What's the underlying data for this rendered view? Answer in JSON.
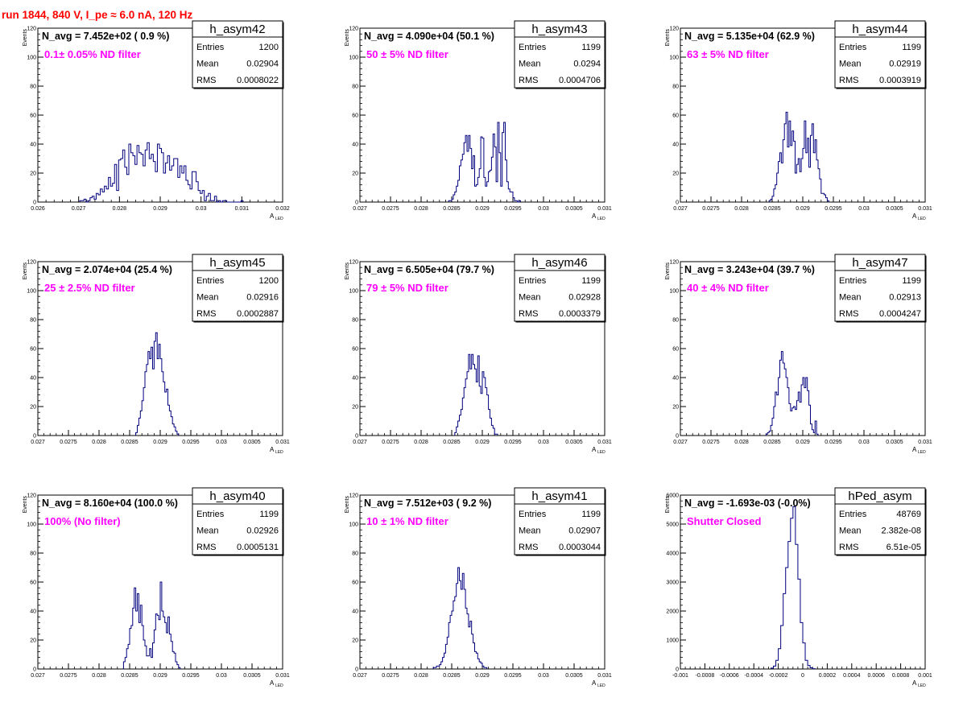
{
  "page_title": "run 1844,   840 V, I_pe ≈ 6.0 nA, 120 Hz",
  "ylabel": "Events",
  "xlabel": "A",
  "xlabel_sub": "LED",
  "stats_labels": {
    "entries": "Entries",
    "mean": "Mean",
    "rms": "RMS"
  },
  "colors": {
    "histogram": "#00007f",
    "title": "#ff0000",
    "filter_label": "#ff00ff",
    "grid": "#000000"
  },
  "chart_data": [
    {
      "type": "bar",
      "name": "h_asym42",
      "navg": "N_avg = 7.452e+02 ( 0.9 %)",
      "filter": "0.1± 0.05% ND filter",
      "stats": {
        "entries": "1200",
        "mean": "0.02904",
        "rms": "0.0008022"
      },
      "xlim": [
        0.026,
        0.032
      ],
      "ylim": [
        0,
        120
      ],
      "xticks": [
        "0.026",
        "0.027",
        "0.028",
        "0.029",
        "0.03",
        "0.031",
        "0.032"
      ],
      "yticks": [
        "0",
        "20",
        "40",
        "60",
        "80",
        "100",
        "120"
      ],
      "x_start": 0.02703,
      "bin_width": 5e-05,
      "values": [
        1,
        1,
        2,
        0,
        1,
        3,
        4,
        2,
        6,
        5,
        9,
        7,
        11,
        9,
        17,
        11,
        13,
        26,
        8,
        29,
        30,
        36,
        24,
        19,
        40,
        34,
        32,
        26,
        39,
        34,
        33,
        25,
        36,
        41,
        30,
        33,
        28,
        21,
        40,
        37,
        34,
        20,
        27,
        32,
        22,
        25,
        30,
        30,
        17,
        25,
        20,
        25,
        15,
        12,
        9,
        21,
        21,
        14,
        8,
        6,
        8,
        1,
        4,
        6,
        1,
        1,
        4,
        0,
        1,
        0,
        1,
        1,
        0,
        0,
        0,
        0,
        0,
        0,
        0,
        1
      ]
    },
    {
      "type": "bar",
      "name": "h_asym43",
      "navg": "N_avg = 4.090e+04 (50.1 %)",
      "filter": "50 ± 5% ND filter",
      "stats": {
        "entries": "1199",
        "mean": "0.0294",
        "rms": "0.0004706"
      },
      "xlim": [
        0.027,
        0.031
      ],
      "ylim": [
        0,
        120
      ],
      "xticks": [
        "0.027",
        "0.0275",
        "0.028",
        "0.0285",
        "0.029",
        "0.0295",
        "0.03",
        "0.0305",
        "0.031"
      ],
      "yticks": [
        "0",
        "20",
        "40",
        "60",
        "80",
        "100",
        "120"
      ],
      "x_start": 0.02845,
      "bin_width": 2.5e-05,
      "values": [
        1,
        1,
        2,
        5,
        7,
        11,
        15,
        25,
        29,
        33,
        41,
        46,
        35,
        46,
        37,
        23,
        32,
        11,
        12,
        17,
        23,
        45,
        44,
        17,
        11,
        14,
        21,
        22,
        31,
        47,
        38,
        14,
        55,
        34,
        11,
        48,
        55,
        29,
        14,
        9,
        7,
        7,
        3,
        1,
        1,
        0,
        1
      ]
    },
    {
      "type": "bar",
      "name": "h_asym44",
      "navg": "N_avg = 5.135e+04 (62.9 %)",
      "filter": "63 ± 5% ND filter",
      "stats": {
        "entries": "1199",
        "mean": "0.02919",
        "rms": "0.0003919"
      },
      "xlim": [
        0.027,
        0.031
      ],
      "ylim": [
        0,
        120
      ],
      "xticks": [
        "0.027",
        "0.0275",
        "0.028",
        "0.0285",
        "0.029",
        "0.0295",
        "0.03",
        "0.0305",
        "0.031"
      ],
      "yticks": [
        "0",
        "20",
        "40",
        "60",
        "80",
        "100",
        "120"
      ],
      "x_start": 0.02845,
      "bin_width": 2.5e-05,
      "values": [
        1,
        2,
        4,
        9,
        12,
        20,
        28,
        34,
        27,
        43,
        54,
        62,
        38,
        56,
        39,
        49,
        42,
        20,
        26,
        30,
        21,
        30,
        37,
        56,
        34,
        44,
        24,
        46,
        54,
        34,
        43,
        29,
        23,
        16,
        6,
        6,
        5,
        3,
        1
      ]
    },
    {
      "type": "bar",
      "name": "h_asym45",
      "navg": "N_avg = 2.074e+04 (25.4 %)",
      "filter": "25 ± 2.5% ND filter",
      "stats": {
        "entries": "1200",
        "mean": "0.02916",
        "rms": "0.0002887"
      },
      "xlim": [
        0.027,
        0.031
      ],
      "ylim": [
        0,
        120
      ],
      "xticks": [
        "0.027",
        "0.0275",
        "0.028",
        "0.0285",
        "0.029",
        "0.0295",
        "0.03",
        "0.0305",
        "0.031"
      ],
      "yticks": [
        "0",
        "20",
        "40",
        "60",
        "80",
        "100",
        "120"
      ],
      "x_start": 0.0286,
      "bin_width": 2.5e-05,
      "values": [
        2,
        7,
        12,
        17,
        24,
        33,
        44,
        49,
        58,
        53,
        61,
        46,
        65,
        71,
        53,
        63,
        53,
        44,
        37,
        30,
        32,
        21,
        17,
        13,
        8,
        6,
        3,
        1
      ]
    },
    {
      "type": "bar",
      "name": "h_asym46",
      "navg": "N_avg = 6.505e+04 (79.7 %)",
      "filter": "79 ± 5% ND filter",
      "stats": {
        "entries": "1199",
        "mean": "0.02928",
        "rms": "0.0003379"
      },
      "xlim": [
        0.027,
        0.031
      ],
      "ylim": [
        0,
        120
      ],
      "xticks": [
        "0.027",
        "0.0275",
        "0.028",
        "0.0285",
        "0.029",
        "0.0295",
        "0.03",
        "0.0305",
        "0.031"
      ],
      "yticks": [
        "0",
        "20",
        "40",
        "60",
        "80",
        "100",
        "120"
      ],
      "x_start": 0.02855,
      "bin_width": 2.5e-05,
      "values": [
        2,
        6,
        10,
        14,
        18,
        26,
        33,
        39,
        44,
        56,
        46,
        56,
        49,
        46,
        37,
        55,
        34,
        29,
        44,
        40,
        33,
        28,
        18,
        12,
        7,
        5,
        1,
        1
      ]
    },
    {
      "type": "bar",
      "name": "h_asym47",
      "navg": "N_avg = 3.243e+04 (39.7 %)",
      "filter": "40 ± 4% ND filter",
      "stats": {
        "entries": "1199",
        "mean": "0.02913",
        "rms": "0.0004247"
      },
      "xlim": [
        0.027,
        0.031
      ],
      "ylim": [
        0,
        120
      ],
      "xticks": [
        "0.027",
        "0.0275",
        "0.028",
        "0.0285",
        "0.029",
        "0.0295",
        "0.03",
        "0.0305",
        "0.031"
      ],
      "yticks": [
        "0",
        "20",
        "40",
        "60",
        "80",
        "100",
        "120"
      ],
      "x_start": 0.0284,
      "bin_width": 2.5e-05,
      "values": [
        1,
        2,
        3,
        7,
        12,
        20,
        30,
        28,
        40,
        52,
        58,
        50,
        46,
        40,
        33,
        22,
        17,
        19,
        20,
        18,
        24,
        30,
        23,
        35,
        40,
        33,
        40,
        31,
        21,
        8,
        4,
        2,
        10,
        1
      ]
    },
    {
      "type": "bar",
      "name": "h_asym40",
      "navg": "N_avg = 8.160e+04 (100.0 %)",
      "filter": "100% (No filter)",
      "stats": {
        "entries": "1199",
        "mean": "0.02926",
        "rms": "0.0005131"
      },
      "xlim": [
        0.027,
        0.031
      ],
      "ylim": [
        0,
        120
      ],
      "xticks": [
        "0.027",
        "0.0275",
        "0.028",
        "0.0285",
        "0.029",
        "0.0295",
        "0.03",
        "0.0305",
        "0.031"
      ],
      "yticks": [
        "0",
        "20",
        "40",
        "60",
        "80",
        "100",
        "120"
      ],
      "x_start": 0.0284,
      "bin_width": 2.5e-05,
      "values": [
        5,
        8,
        14,
        17,
        28,
        30,
        42,
        56,
        40,
        52,
        32,
        44,
        30,
        20,
        16,
        9,
        9,
        14,
        8,
        18,
        27,
        38,
        37,
        34,
        60,
        40,
        36,
        32,
        25,
        36,
        24,
        19,
        12,
        11,
        5,
        3,
        1
      ]
    },
    {
      "type": "bar",
      "name": "h_asym41",
      "navg": "N_avg = 7.512e+03 ( 9.2 %)",
      "filter": "10 ± 1% ND filter",
      "stats": {
        "entries": "1199",
        "mean": "0.02907",
        "rms": "0.0003044"
      },
      "xlim": [
        0.027,
        0.031
      ],
      "ylim": [
        0,
        120
      ],
      "xticks": [
        "0.027",
        "0.0275",
        "0.028",
        "0.0285",
        "0.029",
        "0.0295",
        "0.03",
        "0.0305",
        "0.031"
      ],
      "yticks": [
        "0",
        "20",
        "40",
        "60",
        "80",
        "100",
        "120"
      ],
      "x_start": 0.0282,
      "bin_width": 2.5e-05,
      "values": [
        1,
        1,
        2,
        2,
        3,
        5,
        8,
        11,
        17,
        22,
        32,
        37,
        40,
        47,
        50,
        59,
        70,
        61,
        55,
        66,
        55,
        42,
        38,
        29,
        33,
        24,
        18,
        12,
        11,
        7,
        5,
        4,
        2,
        1,
        1
      ]
    },
    {
      "type": "bar",
      "name": "hPed_asym",
      "navg": "N_avg = -1.693e-03 (-0.0%)",
      "filter": "Shutter Closed",
      "stats": {
        "entries": "48769",
        "mean": "2.382e-08",
        "rms": "6.51e-05"
      },
      "xlim": [
        -0.001,
        0.001
      ],
      "ylim": [
        0,
        6000
      ],
      "xticks": [
        "-0.001",
        "-0.0008",
        "-0.0006",
        "-0.0004",
        "-0.0002",
        "0",
        "0.0002",
        "0.0004",
        "0.0006",
        "0.0008",
        "0.001"
      ],
      "yticks": [
        "0",
        "1000",
        "2000",
        "3000",
        "4000",
        "5000",
        "6000"
      ],
      "x_start": -0.00026,
      "bin_width": 2e-05,
      "values": [
        30,
        100,
        300,
        700,
        1500,
        2600,
        3500,
        4400,
        5200,
        5600,
        4300,
        3100,
        1600,
        900,
        300,
        120,
        40,
        10
      ]
    }
  ]
}
